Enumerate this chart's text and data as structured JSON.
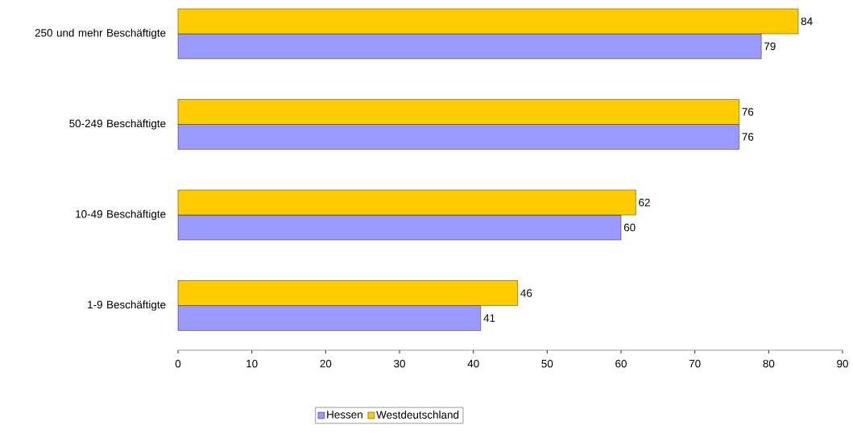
{
  "chart_data": {
    "type": "bar",
    "orientation": "horizontal",
    "categories": [
      "250 und mehr Beschäftigte",
      "50-249 Beschäftigte",
      "10-49 Beschäftigte",
      "1-9 Beschäftigte"
    ],
    "series": [
      {
        "name": "Hessen",
        "color": "#9999ff",
        "values": [
          79,
          76,
          60,
          41
        ]
      },
      {
        "name": "Westdeutschland",
        "color": "#ffcc00",
        "values": [
          84,
          76,
          62,
          46
        ]
      }
    ],
    "xlim": [
      0,
      90
    ],
    "xticks": [
      0,
      10,
      20,
      30,
      40,
      50,
      60,
      70,
      80,
      90
    ],
    "grid": false,
    "legend": "bottom",
    "data_labels": true
  }
}
